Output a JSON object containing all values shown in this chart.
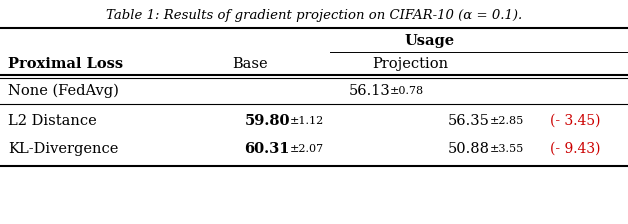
{
  "title": "Table 1: Results of gradient projection on CIFAR-10 (α = 0.1).",
  "col_header_top": "Usage",
  "col_header_left": "Proximal Loss",
  "col_header_base": "Base",
  "col_header_proj": "Projection",
  "rows": [
    {
      "label": "None (FedAvg)",
      "base": null,
      "base_std": null,
      "proj": "56.13",
      "proj_std": "±0.78",
      "diff": null,
      "base_bold": false,
      "proj_bold": false,
      "span": true
    },
    {
      "label": "L2 Distance",
      "base": "59.80",
      "base_std": "±1.12",
      "proj": "56.35",
      "proj_std": "±2.85",
      "diff": "(- 3.45)",
      "base_bold": true,
      "proj_bold": false,
      "span": false
    },
    {
      "label": "KL-Divergence",
      "base": "60.31",
      "base_std": "±2.07",
      "proj": "50.88",
      "proj_std": "±3.55",
      "diff": "(- 9.43)",
      "base_bold": true,
      "proj_bold": false,
      "span": false
    }
  ],
  "font_size": 10.5,
  "title_font_size": 9.5,
  "red_color": "#CC0000",
  "black_color": "#000000",
  "bg_color": "#FFFFFF"
}
